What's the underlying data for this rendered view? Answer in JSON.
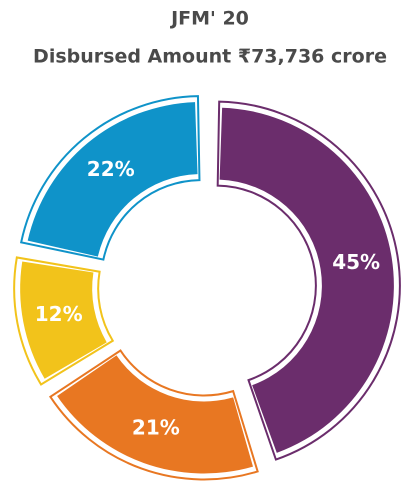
{
  "chart_data": {
    "type": "donut",
    "title": "JFM' 20",
    "subtitle": "Disbursed Amount ₹73,736 crore",
    "categories": [
      null,
      null,
      null,
      null
    ],
    "values": [
      45,
      21,
      12,
      22
    ],
    "value_labels": [
      "45%",
      "21%",
      "12%",
      "22%"
    ],
    "colors": [
      "#6b2d6c",
      "#e87722",
      "#f2c31b",
      "#0f93c9"
    ]
  }
}
